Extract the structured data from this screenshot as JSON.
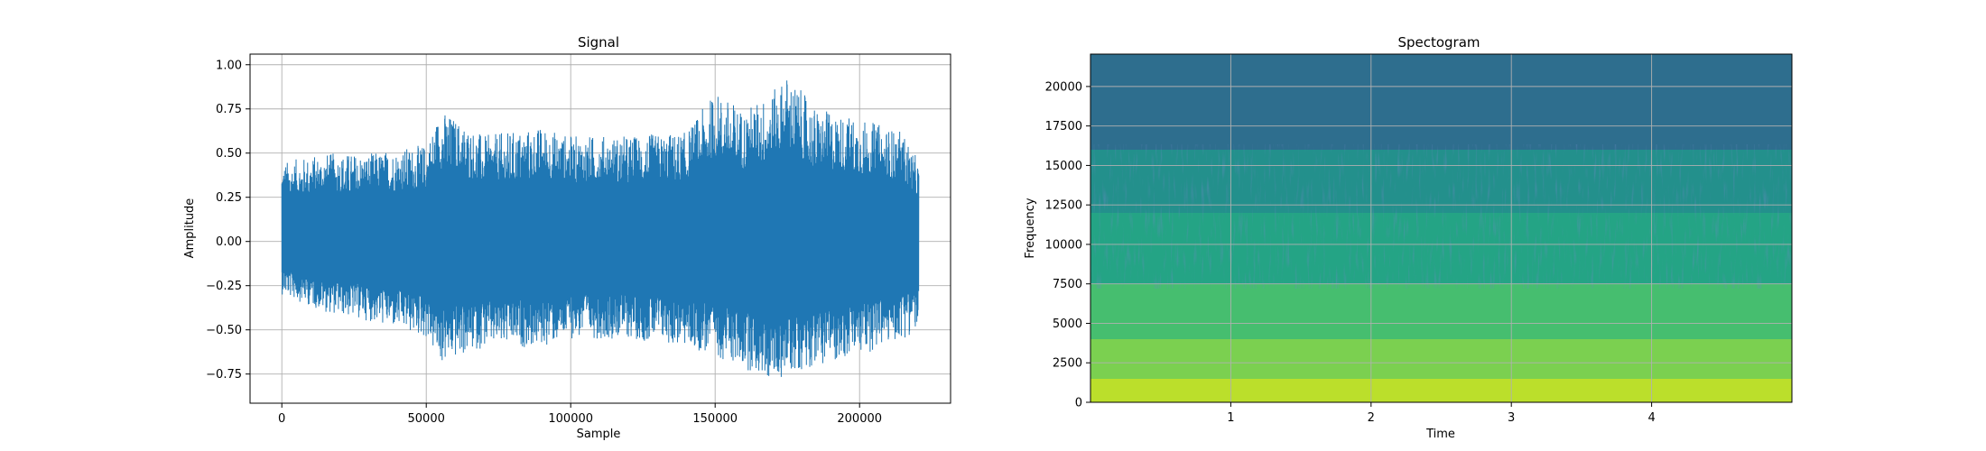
{
  "chart_data": [
    {
      "type": "line",
      "title": "Signal",
      "xlabel": "Sample",
      "ylabel": "Amplitude",
      "xlim": [
        -11000,
        231500
      ],
      "ylim": [
        -0.915,
        1.06
      ],
      "xticks": [
        0,
        50000,
        100000,
        150000,
        200000
      ],
      "yticks": [
        -0.75,
        -0.5,
        -0.25,
        0.0,
        0.25,
        0.5,
        0.75,
        1.0
      ],
      "xtick_labels": [
        "0",
        "50000",
        "100000",
        "150000",
        "200000"
      ],
      "ytick_labels": [
        "−0.75",
        "−0.50",
        "−0.25",
        "0.00",
        "0.25",
        "0.50",
        "0.75",
        "1.00"
      ],
      "grid": true,
      "color": "#1f77b4",
      "series": [
        {
          "sample_range": [
            0,
            220500
          ],
          "envelope": {
            "x": [
              0,
              15000,
              30000,
              50000,
              55000,
              70000,
              90000,
              100000,
              120000,
              140000,
              150000,
              160000,
              170000,
              175000,
              185000,
              200000,
              215000,
              220500
            ],
            "upper": [
              0.45,
              0.5,
              0.5,
              0.55,
              0.75,
              0.6,
              0.65,
              0.6,
              0.6,
              0.62,
              0.85,
              0.75,
              0.85,
              0.95,
              0.75,
              0.7,
              0.62,
              0.45
            ],
            "lower": [
              -0.3,
              -0.4,
              -0.45,
              -0.55,
              -0.7,
              -0.6,
              -0.6,
              -0.55,
              -0.55,
              -0.6,
              -0.65,
              -0.72,
              -0.8,
              -0.75,
              -0.7,
              -0.65,
              -0.55,
              -0.5
            ]
          }
        }
      ]
    },
    {
      "type": "heatmap",
      "title": "Spectogram",
      "xlabel": "Time",
      "ylabel": "Frequency",
      "xlim": [
        0,
        5
      ],
      "ylim": [
        0,
        22050
      ],
      "xticks": [
        1,
        2,
        3,
        4
      ],
      "yticks": [
        0,
        2500,
        5000,
        7500,
        10000,
        12500,
        15000,
        17500,
        20000
      ],
      "xtick_labels": [
        "1",
        "2",
        "3",
        "4"
      ],
      "ytick_labels": [
        "0",
        "2500",
        "5000",
        "7500",
        "10000",
        "12500",
        "15000",
        "17500",
        "20000"
      ],
      "grid": true,
      "colormap": "viridis",
      "bands": [
        {
          "freq_range": [
            0,
            1500
          ],
          "level": 0.9
        },
        {
          "freq_range": [
            1500,
            4000
          ],
          "level": 0.8
        },
        {
          "freq_range": [
            4000,
            7500
          ],
          "level": 0.7
        },
        {
          "freq_range": [
            7500,
            12000
          ],
          "level": 0.58
        },
        {
          "freq_range": [
            12000,
            16000
          ],
          "level": 0.5
        },
        {
          "freq_range": [
            16000,
            22050
          ],
          "level": 0.36
        }
      ]
    }
  ]
}
